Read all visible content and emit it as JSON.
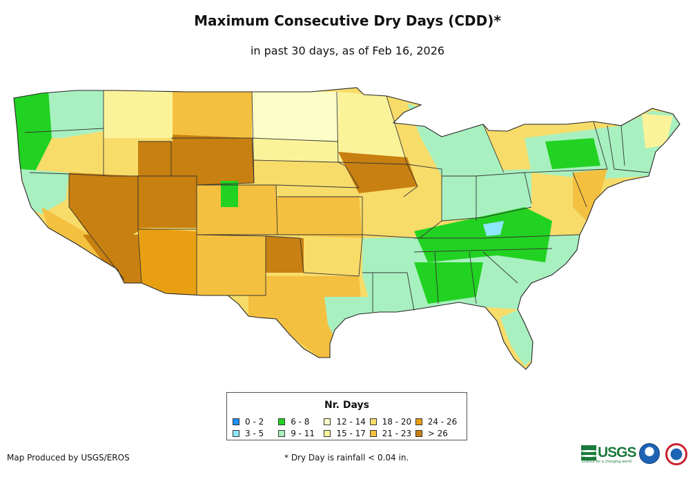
{
  "title": "Maximum Consecutive Dry Days (CDD)*",
  "subtitle": "in past 30 days, as of Feb 16, 2026",
  "legend": {
    "title": "Nr. Days",
    "items": [
      {
        "label": "0 - 2",
        "color": "#1e90ff"
      },
      {
        "label": "3 - 5",
        "color": "#8fe6ff"
      },
      {
        "label": "6 - 8",
        "color": "#22d222"
      },
      {
        "label": "9 - 11",
        "color": "#a8f0c0"
      },
      {
        "label": "12 - 14",
        "color": "#fdfdc8"
      },
      {
        "label": "15 - 17",
        "color": "#fbf39a"
      },
      {
        "label": "18 - 20",
        "color": "#f8dc6a"
      },
      {
        "label": "21 - 23",
        "color": "#f4c040"
      },
      {
        "label": "24 - 26",
        "color": "#e8a012"
      },
      {
        "label": "> 26",
        "color": "#c88010"
      }
    ]
  },
  "credit": "Map Produced by USGS/EROS",
  "footnote": "* Dry Day is rainfall < 0.04 in.",
  "logos": {
    "usgs_text": "USGS",
    "usgs_tagline": "science for a changing world",
    "noaa": "noaa-logo",
    "nws": "nws-logo"
  }
}
